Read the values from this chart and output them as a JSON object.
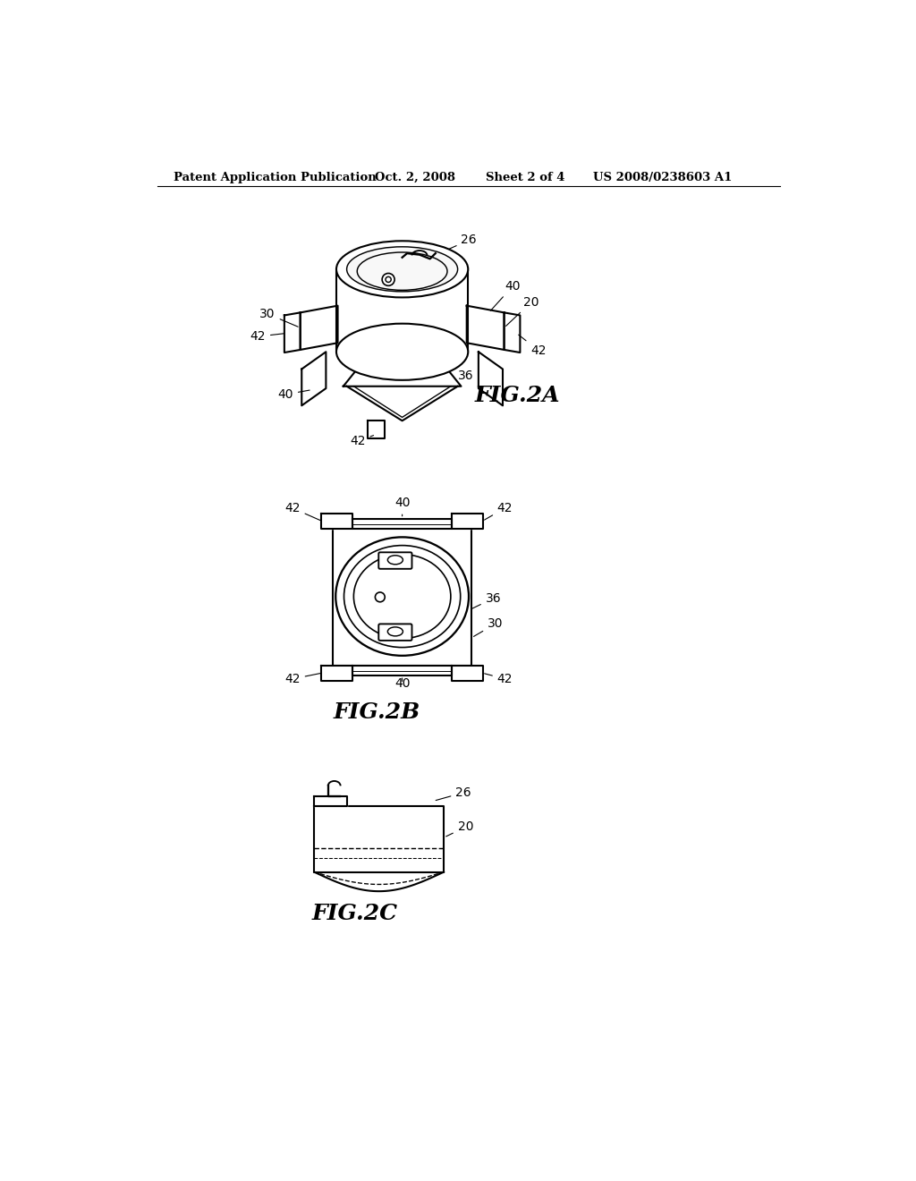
{
  "background_color": "#ffffff",
  "header_text": "Patent Application Publication",
  "header_date": "Oct. 2, 2008",
  "header_sheet": "Sheet 2 of 4",
  "header_patent": "US 2008/0238603 A1",
  "fig2a_label": "FIG.2A",
  "fig2b_label": "FIG.2B",
  "fig2c_label": "FIG.2C",
  "line_color": "#000000",
  "line_width": 1.5,
  "fig_font_size": 18,
  "label_font_size": 10
}
